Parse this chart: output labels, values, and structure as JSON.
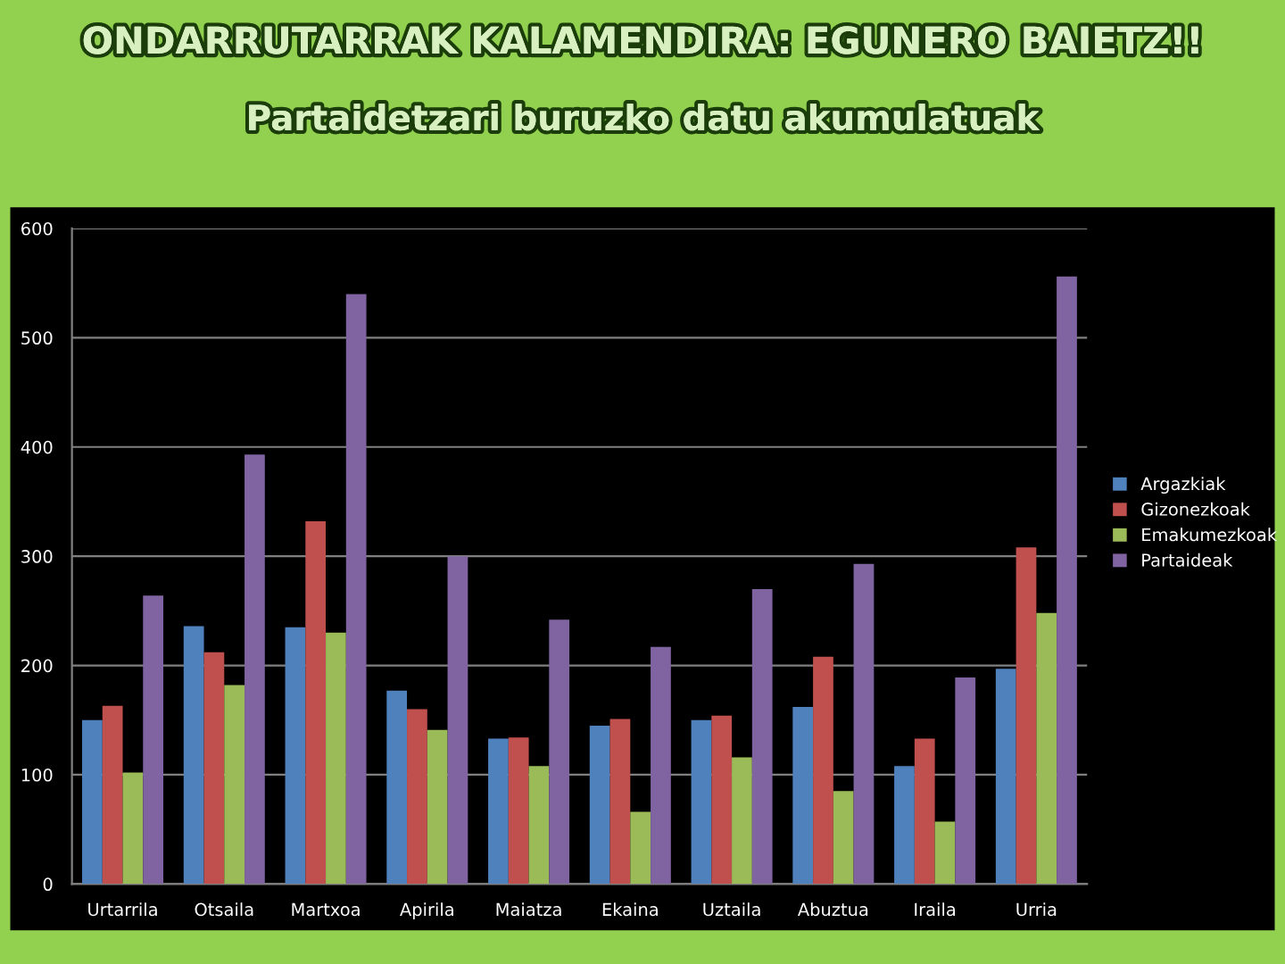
{
  "chart_data": {
    "type": "bar",
    "title": "ONDARRUTARRAK KALAMENDIRA: EGUNERO BAIETZ!!",
    "subtitle": "Partaidetzari buruzko datu akumulatuak",
    "categories": [
      "Urtarrila",
      "Otsaila",
      "Martxoa",
      "Apirila",
      "Maiatza",
      "Ekaina",
      "Uztaila",
      "Abuztua",
      "Iraila",
      "Urria"
    ],
    "series": [
      {
        "name": "Argazkiak",
        "color": "#4f81bd",
        "values": [
          150,
          236,
          235,
          177,
          133,
          145,
          150,
          162,
          108,
          197
        ]
      },
      {
        "name": "Gizonezkoak",
        "color": "#c0504d",
        "values": [
          163,
          212,
          332,
          160,
          134,
          151,
          154,
          208,
          133,
          308
        ]
      },
      {
        "name": "Emakumezkoak",
        "color": "#9bbb59",
        "values": [
          102,
          182,
          230,
          141,
          108,
          66,
          116,
          85,
          57,
          248
        ]
      },
      {
        "name": "Partaideak",
        "color": "#8064a2",
        "values": [
          264,
          393,
          540,
          300,
          242,
          217,
          270,
          293,
          189,
          556
        ]
      }
    ],
    "ylim": [
      0,
      600
    ],
    "yticks": [
      0,
      100,
      200,
      300,
      400,
      500,
      600
    ],
    "grid": "y",
    "legend": "right"
  }
}
